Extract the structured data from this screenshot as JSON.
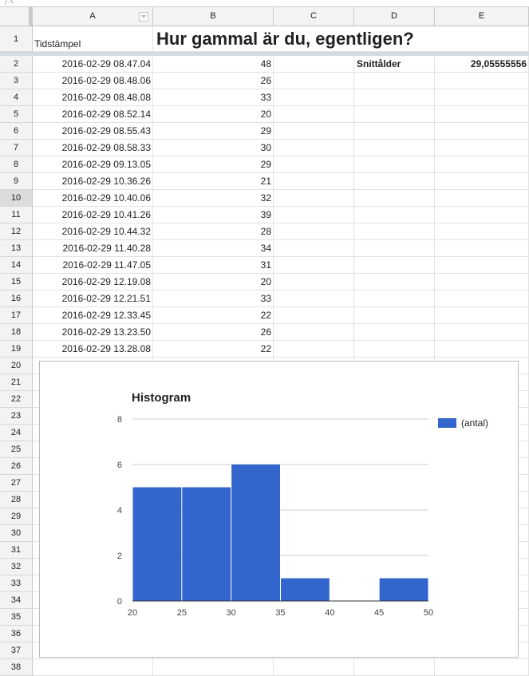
{
  "formula_bar": {
    "icon": "fx-icon",
    "label": "fx"
  },
  "columns": [
    "A",
    "B",
    "C",
    "D",
    "E"
  ],
  "header_row": {
    "row_number": "1",
    "a1": "Tidstämpel",
    "title": "Hur gammal är du, egentligen?"
  },
  "summary": {
    "label": "Snittålder",
    "value": "29,05555556"
  },
  "rows": [
    {
      "n": "2",
      "timestamp": "2016-02-29 08.47.04",
      "age": "48"
    },
    {
      "n": "3",
      "timestamp": "2016-02-29 08.48.06",
      "age": "26"
    },
    {
      "n": "4",
      "timestamp": "2016-02-29 08.48.08",
      "age": "33"
    },
    {
      "n": "5",
      "timestamp": "2016-02-29 08.52.14",
      "age": "20"
    },
    {
      "n": "6",
      "timestamp": "2016-02-29 08.55.43",
      "age": "29"
    },
    {
      "n": "7",
      "timestamp": "2016-02-29 08.58.33",
      "age": "30"
    },
    {
      "n": "8",
      "timestamp": "2016-02-29 09.13.05",
      "age": "29"
    },
    {
      "n": "9",
      "timestamp": "2016-02-29 10.36.26",
      "age": "21"
    },
    {
      "n": "10",
      "timestamp": "2016-02-29 10.40.06",
      "age": "32"
    },
    {
      "n": "11",
      "timestamp": "2016-02-29 10.41.26",
      "age": "39"
    },
    {
      "n": "12",
      "timestamp": "2016-02-29 10.44.32",
      "age": "28"
    },
    {
      "n": "13",
      "timestamp": "2016-02-29 11.40.28",
      "age": "34"
    },
    {
      "n": "14",
      "timestamp": "2016-02-29 11.47.05",
      "age": "31"
    },
    {
      "n": "15",
      "timestamp": "2016-02-29 12.19.08",
      "age": "20"
    },
    {
      "n": "16",
      "timestamp": "2016-02-29 12.21.51",
      "age": "33"
    },
    {
      "n": "17",
      "timestamp": "2016-02-29 12.33.45",
      "age": "22"
    },
    {
      "n": "18",
      "timestamp": "2016-02-29 13.23.50",
      "age": "26"
    },
    {
      "n": "19",
      "timestamp": "2016-02-29 13.28.08",
      "age": "22"
    },
    {
      "n": "20",
      "timestamp": "",
      "age": ""
    },
    {
      "n": "21",
      "timestamp": "",
      "age": ""
    },
    {
      "n": "22",
      "timestamp": "",
      "age": ""
    },
    {
      "n": "23",
      "timestamp": "",
      "age": ""
    },
    {
      "n": "24",
      "timestamp": "",
      "age": ""
    },
    {
      "n": "25",
      "timestamp": "",
      "age": ""
    },
    {
      "n": "26",
      "timestamp": "",
      "age": ""
    },
    {
      "n": "27",
      "timestamp": "",
      "age": ""
    },
    {
      "n": "28",
      "timestamp": "",
      "age": ""
    },
    {
      "n": "29",
      "timestamp": "",
      "age": ""
    },
    {
      "n": "30",
      "timestamp": "",
      "age": ""
    },
    {
      "n": "31",
      "timestamp": "",
      "age": ""
    },
    {
      "n": "32",
      "timestamp": "",
      "age": ""
    },
    {
      "n": "33",
      "timestamp": "",
      "age": ""
    },
    {
      "n": "34",
      "timestamp": "",
      "age": ""
    },
    {
      "n": "35",
      "timestamp": "",
      "age": ""
    },
    {
      "n": "36",
      "timestamp": "",
      "age": ""
    },
    {
      "n": "37",
      "timestamp": "",
      "age": ""
    },
    {
      "n": "38",
      "timestamp": "",
      "age": ""
    }
  ],
  "selected_row": "10",
  "chart_data": {
    "type": "bar",
    "title": "Histogram",
    "bins": [
      [
        20,
        25
      ],
      [
        25,
        30
      ],
      [
        30,
        35
      ],
      [
        35,
        40
      ],
      [
        40,
        45
      ],
      [
        45,
        50
      ]
    ],
    "values": [
      5,
      5,
      6,
      1,
      0,
      1
    ],
    "x_ticks": [
      "20",
      "25",
      "30",
      "35",
      "40",
      "45",
      "50"
    ],
    "y_ticks": [
      "0",
      "2",
      "4",
      "6",
      "8"
    ],
    "xlim": [
      20,
      50
    ],
    "ylim": [
      0,
      8
    ],
    "series": [
      {
        "name": "(antal)",
        "values": [
          5,
          5,
          6,
          1,
          0,
          1
        ]
      }
    ],
    "legend": "right",
    "grid": true,
    "color": "#3366cc"
  }
}
